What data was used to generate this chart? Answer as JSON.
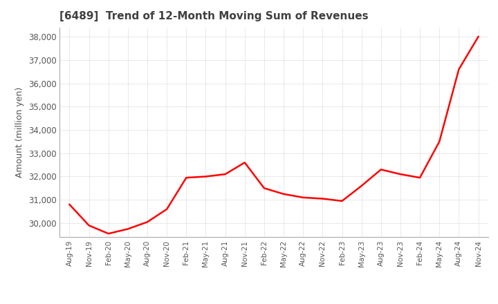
{
  "title": "[6489]  Trend of 12-Month Moving Sum of Revenues",
  "ylabel": "Amount (million yen)",
  "x_labels": [
    "Aug-19",
    "Nov-19",
    "Feb-20",
    "May-20",
    "Aug-20",
    "Nov-20",
    "Feb-21",
    "May-21",
    "Aug-21",
    "Nov-21",
    "Feb-22",
    "May-22",
    "Aug-22",
    "Nov-22",
    "Feb-23",
    "May-23",
    "Aug-23",
    "Nov-23",
    "Feb-24",
    "May-24",
    "Aug-24",
    "Nov-24"
  ],
  "values": [
    30800,
    29900,
    29550,
    29750,
    30050,
    30600,
    31950,
    32000,
    32100,
    32600,
    31500,
    31250,
    31100,
    31050,
    30950,
    31600,
    32300,
    32100,
    31950,
    33500,
    36600,
    38000
  ],
  "ylim": [
    29400,
    38400
  ],
  "yticks": [
    30000,
    31000,
    32000,
    33000,
    34000,
    35000,
    36000,
    37000,
    38000
  ],
  "line_color": "#ff0000",
  "bg_color": "#ffffff",
  "grid_color": "#bbbbbb",
  "title_color": "#404040",
  "axis_color": "#555555"
}
